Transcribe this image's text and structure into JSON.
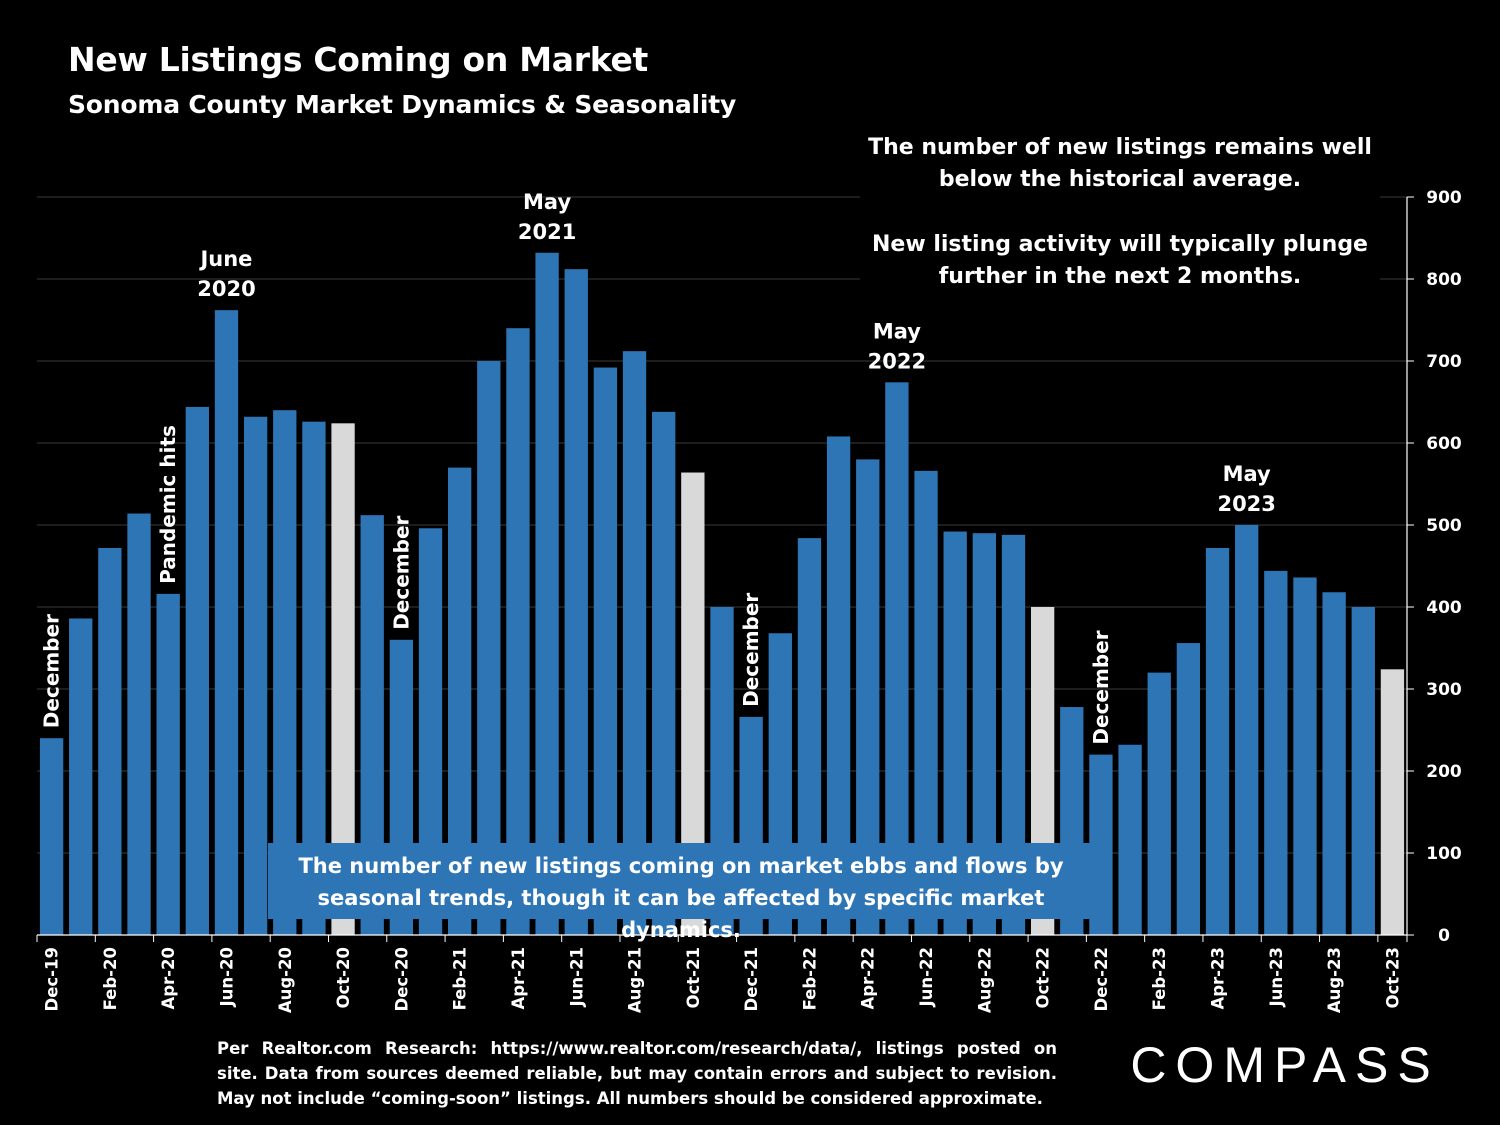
{
  "title": "New Listings Coming on Market",
  "subtitle": "Sonoma County Market Dynamics & Seasonality",
  "note_top": {
    "line1": "The number of new listings remains well below the historical average.",
    "line2": "New listing activity will typically plunge further in the next 2 months."
  },
  "note_bottom": "The number of new listings coming on market ebbs and flows by seasonal trends, though it can be affected by specific market dynamics.",
  "footnote": "Per Realtor.com Research: https://www.realtor.com/research/data/, listings posted on site. Data from sources deemed reliable, but may contain errors and subject to revision. May not include “coming-soon” listings. All numbers should be considered approximate.",
  "logo_text": "COMPASS",
  "colors": {
    "bar": "#2e75b6",
    "highlight": "#d9d9d9",
    "grid": "#3a3a3a",
    "background": "#000000"
  },
  "chart_data": {
    "type": "bar",
    "title": "New Listings Coming on Market",
    "ylim": [
      0,
      900
    ],
    "yticks": [
      0,
      100,
      200,
      300,
      400,
      500,
      600,
      700,
      800,
      900
    ],
    "y_axis_side": "right",
    "categories": [
      "Dec-19",
      "Jan-20",
      "Feb-20",
      "Mar-20",
      "Apr-20",
      "May-20",
      "Jun-20",
      "Jul-20",
      "Aug-20",
      "Sep-20",
      "Oct-20",
      "Nov-20",
      "Dec-20",
      "Jan-21",
      "Feb-21",
      "Mar-21",
      "Apr-21",
      "May-21",
      "Jun-21",
      "Jul-21",
      "Aug-21",
      "Sep-21",
      "Oct-21",
      "Nov-21",
      "Dec-21",
      "Jan-22",
      "Feb-22",
      "Mar-22",
      "Apr-22",
      "May-22",
      "Jun-22",
      "Jul-22",
      "Aug-22",
      "Sep-22",
      "Oct-22",
      "Nov-22",
      "Dec-22",
      "Jan-23",
      "Feb-23",
      "Mar-23",
      "Apr-23",
      "May-23",
      "Jun-23",
      "Jul-23",
      "Aug-23",
      "Sep-23",
      "Oct-23"
    ],
    "values": [
      240,
      386,
      472,
      514,
      416,
      644,
      762,
      632,
      640,
      626,
      624,
      512,
      360,
      496,
      570,
      700,
      740,
      832,
      812,
      692,
      712,
      638,
      564,
      400,
      266,
      368,
      484,
      608,
      580,
      674,
      566,
      492,
      490,
      488,
      400,
      278,
      220,
      232,
      320,
      356,
      472,
      500,
      444,
      436,
      418,
      400,
      324
    ],
    "highlighted": [
      "Oct-20",
      "Oct-21",
      "Oct-22",
      "Oct-23"
    ],
    "xtick_labels": [
      "Dec-19",
      "Feb-20",
      "Apr-20",
      "Jun-20",
      "Aug-20",
      "Oct-20",
      "Dec-20",
      "Feb-21",
      "Apr-21",
      "Jun-21",
      "Aug-21",
      "Oct-21",
      "Dec-21",
      "Feb-22",
      "Apr-22",
      "Jun-22",
      "Aug-22",
      "Oct-22",
      "Dec-22",
      "Feb-23",
      "Apr-23",
      "Jun-23",
      "Aug-23",
      "Oct-23"
    ],
    "annotations": [
      {
        "category": "Dec-19",
        "text": "December",
        "orientation": "vertical"
      },
      {
        "category": "Apr-20",
        "text": "Pandemic hits",
        "orientation": "vertical"
      },
      {
        "category": "Jun-20",
        "text": "June 2020",
        "orientation": "horizontal"
      },
      {
        "category": "Dec-20",
        "text": "December",
        "orientation": "vertical"
      },
      {
        "category": "May-21",
        "text": "May 2021",
        "orientation": "horizontal"
      },
      {
        "category": "Dec-21",
        "text": "December",
        "orientation": "vertical"
      },
      {
        "category": "May-22",
        "text": "May 2022",
        "orientation": "horizontal"
      },
      {
        "category": "Dec-22",
        "text": "December",
        "orientation": "vertical"
      },
      {
        "category": "May-23",
        "text": "May 2023",
        "orientation": "horizontal"
      }
    ]
  }
}
